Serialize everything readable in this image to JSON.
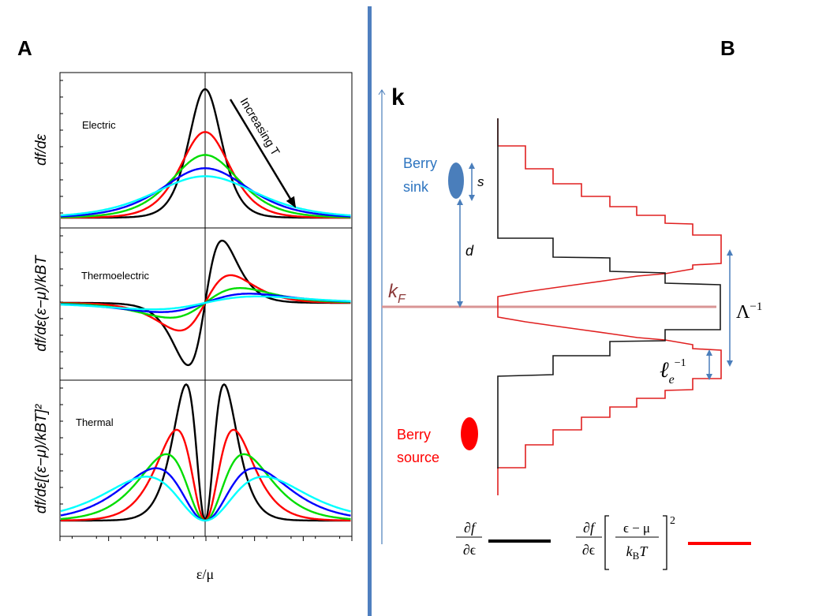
{
  "panel_a": {
    "label": "A",
    "xlabel": "ε/μ",
    "annotation": "Increasing T"
  },
  "panel_b": {
    "label": "B",
    "axis_label": "k",
    "fermi_label": "k",
    "fermi_sub": "F",
    "sink_line1": "Berry",
    "sink_line2": "sink",
    "source_line1": "Berry",
    "source_line2": "source",
    "s_label": "s",
    "d_label": "d",
    "lambda_label": "Λ",
    "lambda_exp": "−1",
    "le_label": "ℓ",
    "le_sub": "e",
    "le_exp": "−1",
    "legend": {
      "black_num": "∂f",
      "black_den": "∂ϵ",
      "red_num": "∂f",
      "red_den": "∂ϵ",
      "red_inner_num": "ϵ − μ",
      "red_inner_den_k": "k",
      "red_inner_den_sub": "B",
      "red_inner_den_T": "T",
      "red_exp": "2"
    }
  },
  "colors": {
    "divider": "#4f7fbf",
    "axis_blue": "#4a7ebb",
    "sink": "#4a7ebb",
    "sink_text": "#2e75c0",
    "source": "#ff0000",
    "fermi_line": "#d99595",
    "fermi_text": "#8b3a3a",
    "hist_black": "#1a1a1a",
    "hist_red": "#e02020"
  },
  "chart_data": [
    {
      "type": "line",
      "panel": "Electric",
      "title": "Electric",
      "ylabel": "df/dε",
      "xlabel": "ε/μ",
      "grid": false,
      "series": [
        {
          "color": "#000000",
          "relative_T": 1.0
        },
        {
          "color": "#ff0000",
          "relative_T": 1.5
        },
        {
          "color": "#00dd00",
          "relative_T": 2.05
        },
        {
          "color": "#0000ff",
          "relative_T": 2.6
        },
        {
          "color": "#00ffff",
          "relative_T": 3.1
        }
      ]
    },
    {
      "type": "line",
      "panel": "Thermoelectric",
      "title": "Thermoelectric",
      "ylabel": "df/dε(ε−μ)/kBT",
      "xlabel": "ε/μ",
      "grid": false,
      "series": [
        {
          "color": "#000000",
          "relative_T": 1.0
        },
        {
          "color": "#ff0000",
          "relative_T": 1.5
        },
        {
          "color": "#00dd00",
          "relative_T": 2.05
        },
        {
          "color": "#0000ff",
          "relative_T": 2.6
        },
        {
          "color": "#00ffff",
          "relative_T": 3.1
        }
      ]
    },
    {
      "type": "line",
      "panel": "Thermal",
      "title": "Thermal",
      "ylabel": "df/dε[(ε−μ)/kBT]²",
      "xlabel": "ε/μ",
      "grid": false,
      "series": [
        {
          "color": "#000000",
          "relative_T": 1.0
        },
        {
          "color": "#ff0000",
          "relative_T": 1.5
        },
        {
          "color": "#00dd00",
          "relative_T": 2.05
        },
        {
          "color": "#0000ff",
          "relative_T": 2.6
        },
        {
          "color": "#00ffff",
          "relative_T": 3.1
        }
      ]
    }
  ]
}
